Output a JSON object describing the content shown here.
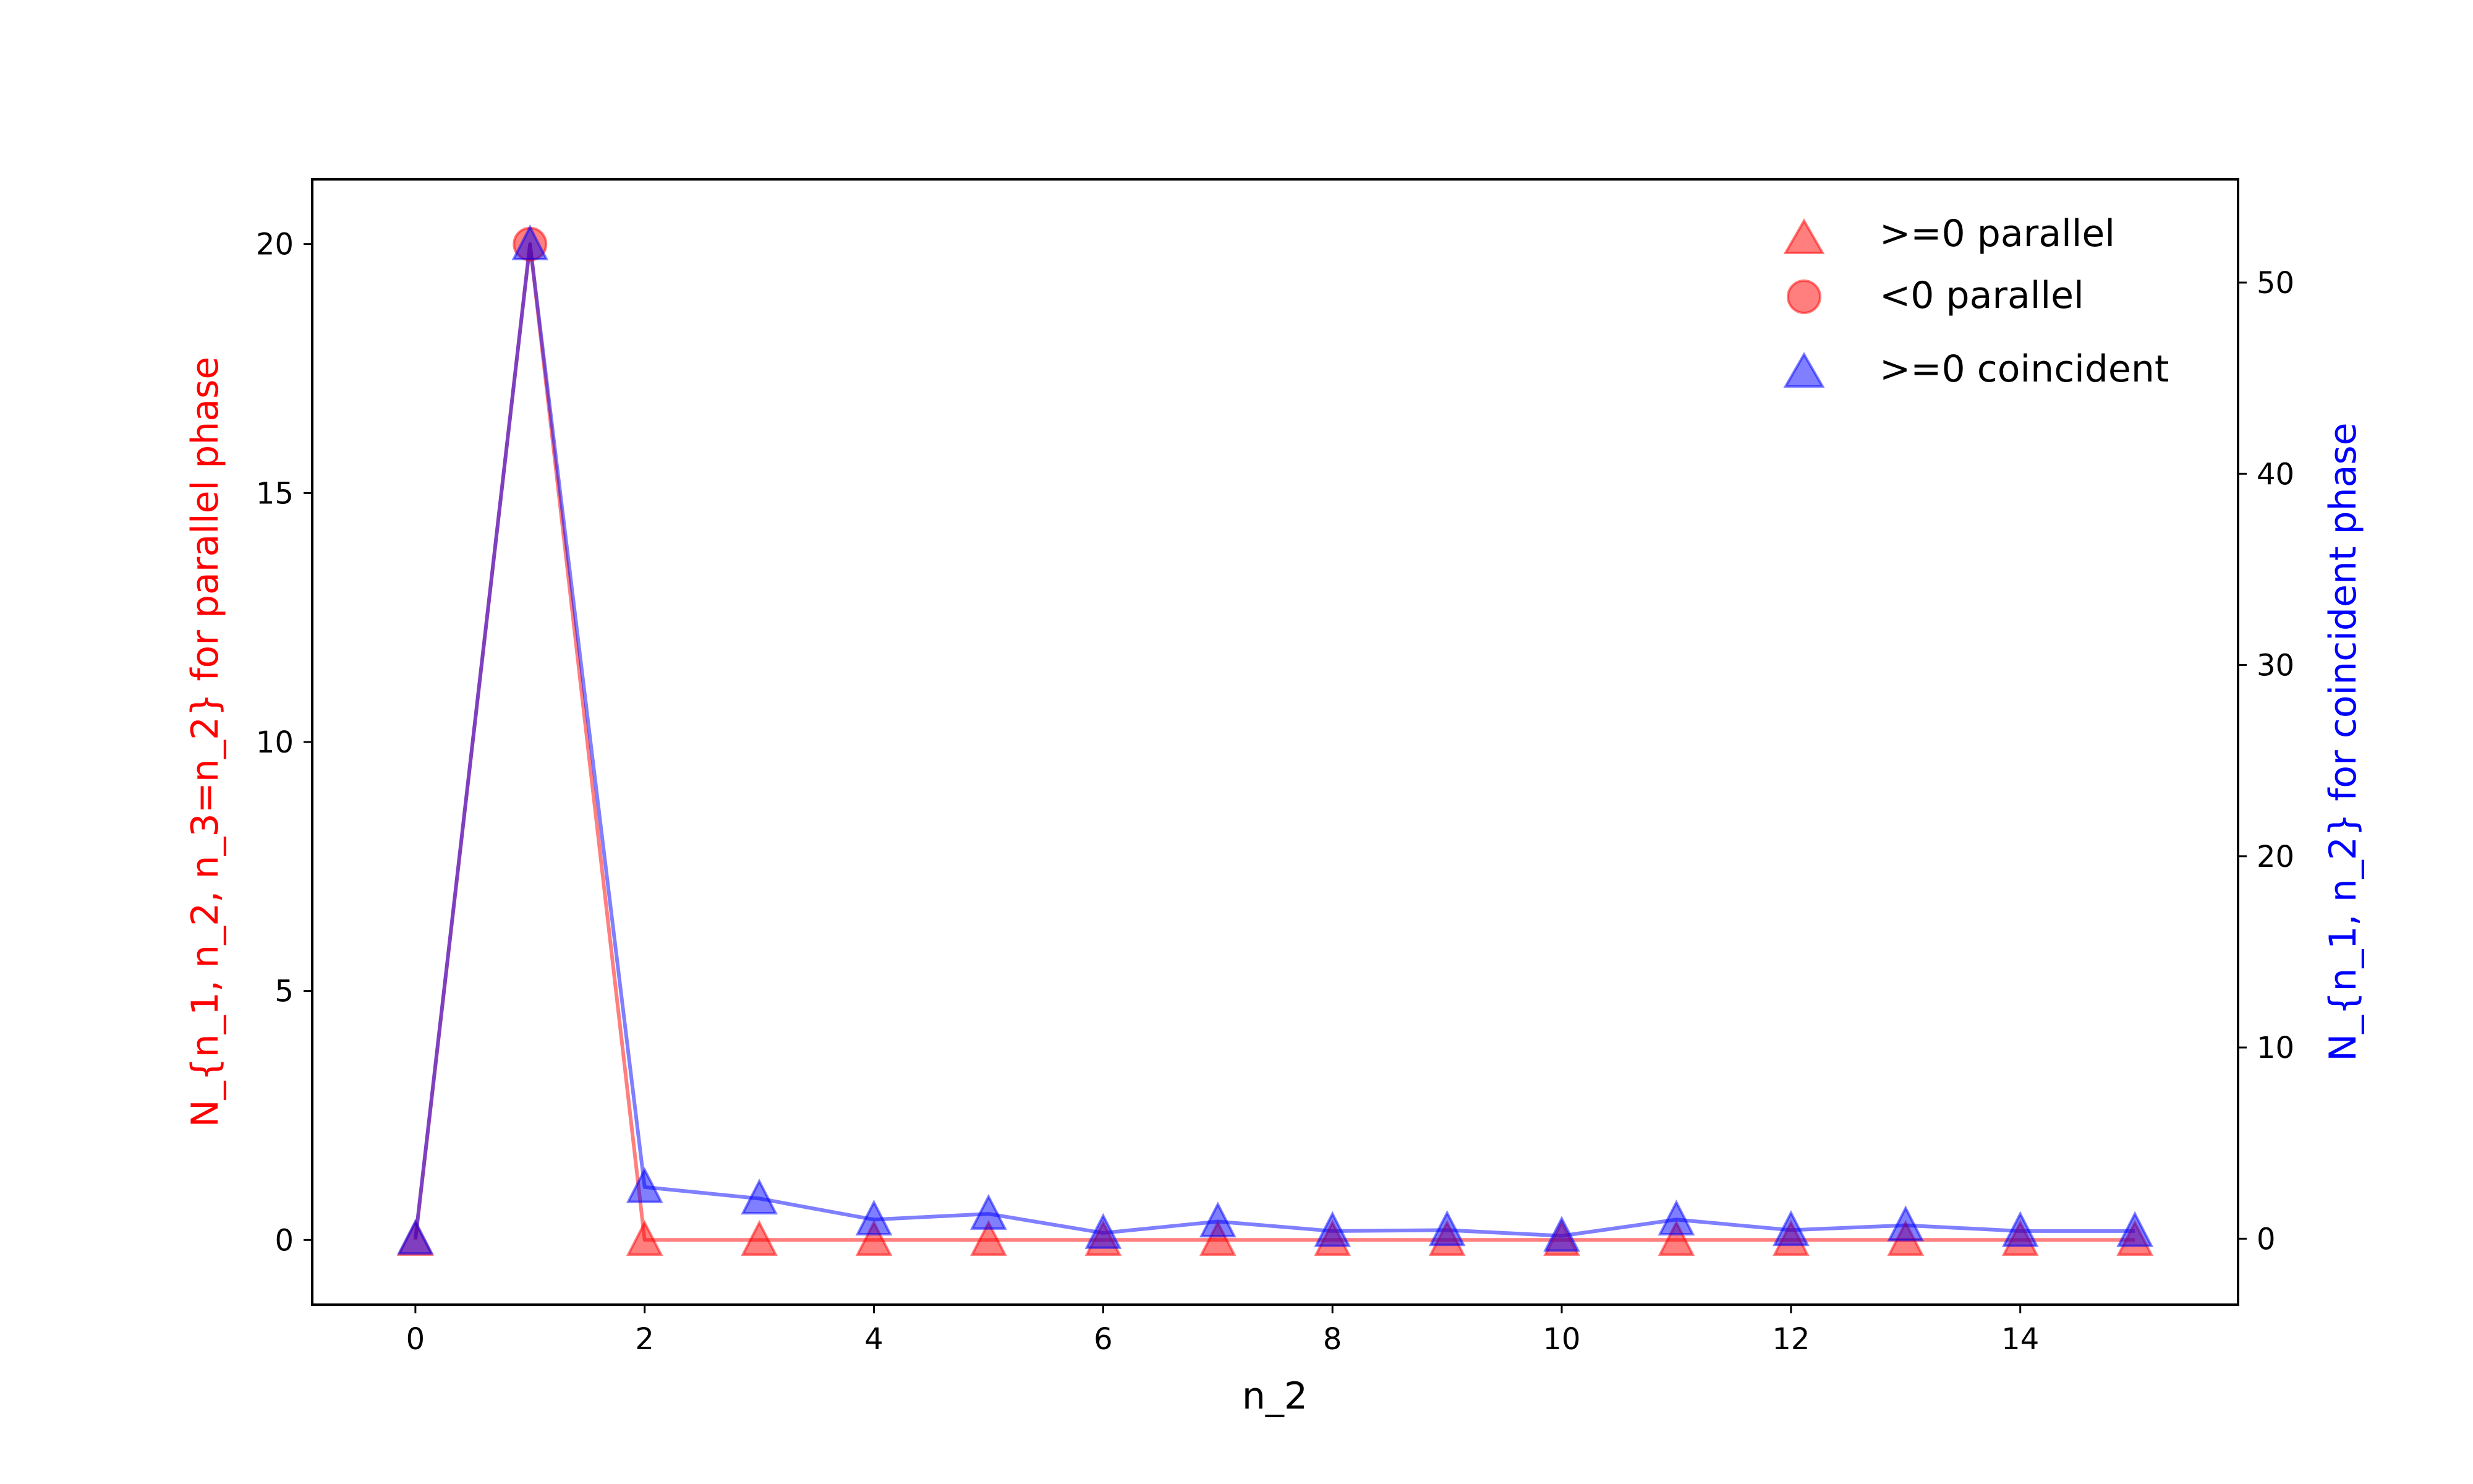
{
  "chart_data": {
    "type": "line",
    "xlabel": "n_2",
    "ylabel_left": "N_{n_1, n_2, n_3=n_2} for parallel phase",
    "ylabel_right": "N_{n_1, n_2} for coincident phase",
    "xlim": [
      -0.9,
      15.9
    ],
    "ylim_left": [
      -1.3,
      21.3
    ],
    "ylim_right": [
      -3.45,
      55.4
    ],
    "x_ticks": [
      0,
      2,
      4,
      6,
      8,
      10,
      12,
      14
    ],
    "y_ticks_left": [
      0,
      5,
      10,
      15,
      20
    ],
    "y_ticks_right": [
      0,
      10,
      20,
      30,
      40,
      50
    ],
    "grid": false,
    "legend_position": "top-right",
    "x": [
      0,
      1,
      2,
      3,
      4,
      5,
      6,
      7,
      8,
      9,
      10,
      11,
      12,
      13,
      14,
      15
    ],
    "series": [
      {
        "name": ">=0 parallel",
        "axis": "left",
        "color": "#ff0000",
        "marker": "triangle",
        "line": true,
        "points": [
          {
            "x": 0,
            "y": 0
          },
          {
            "x": 2,
            "y": 0
          },
          {
            "x": 3,
            "y": 0
          },
          {
            "x": 4,
            "y": 0
          },
          {
            "x": 5,
            "y": 0
          },
          {
            "x": 6,
            "y": 0
          },
          {
            "x": 7,
            "y": 0
          },
          {
            "x": 8,
            "y": 0
          },
          {
            "x": 9,
            "y": 0
          },
          {
            "x": 10,
            "y": 0
          },
          {
            "x": 11,
            "y": 0
          },
          {
            "x": 12,
            "y": 0
          },
          {
            "x": 13,
            "y": 0
          },
          {
            "x": 14,
            "y": 0
          },
          {
            "x": 15,
            "y": 0
          }
        ],
        "line_values": [
          0,
          20,
          0,
          0,
          0,
          0,
          0,
          0,
          0,
          0,
          0,
          0,
          0,
          0,
          0,
          0
        ]
      },
      {
        "name": "<0 parallel",
        "axis": "left",
        "color": "#ff0000",
        "marker": "circle",
        "line": false,
        "points": [
          {
            "x": 1,
            "y": 20
          }
        ]
      },
      {
        "name": ">=0 coincident",
        "axis": "right",
        "color": "#0000ff",
        "marker": "triangle",
        "line": true,
        "points": [
          {
            "x": 0,
            "y": 0
          },
          {
            "x": 1,
            "y": 52
          },
          {
            "x": 2,
            "y": 2.7
          },
          {
            "x": 3,
            "y": 2.1
          },
          {
            "x": 4,
            "y": 1.0
          },
          {
            "x": 5,
            "y": 1.3
          },
          {
            "x": 6,
            "y": 0.3
          },
          {
            "x": 7,
            "y": 0.9
          },
          {
            "x": 8,
            "y": 0.4
          },
          {
            "x": 9,
            "y": 0.45
          },
          {
            "x": 10,
            "y": 0.15
          },
          {
            "x": 11,
            "y": 1.0
          },
          {
            "x": 12,
            "y": 0.45
          },
          {
            "x": 13,
            "y": 0.7
          },
          {
            "x": 14,
            "y": 0.4
          },
          {
            "x": 15,
            "y": 0.4
          }
        ]
      }
    ]
  }
}
